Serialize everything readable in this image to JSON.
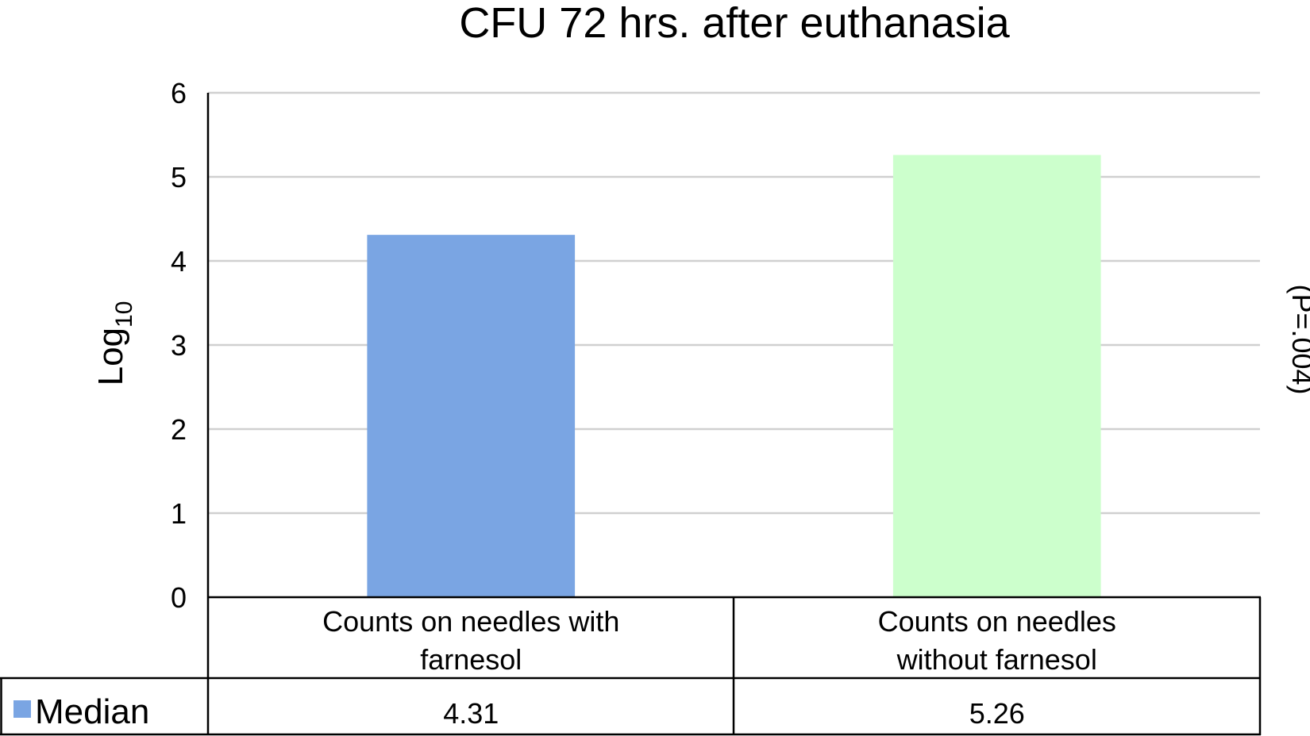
{
  "chart_data": {
    "type": "bar",
    "title": "CFU 72 hrs. after euthanasia",
    "ylabel": {
      "main": "Log",
      "sub": "10"
    },
    "ylim": [
      0,
      6
    ],
    "yticks": [
      "0",
      "1",
      "2",
      "3",
      "4",
      "5",
      "6"
    ],
    "grid": true,
    "categories": [
      {
        "lines": [
          "Counts on needles with",
          "farnesol"
        ]
      },
      {
        "lines": [
          "Counts on needles",
          "without farnesol"
        ]
      }
    ],
    "series": [
      {
        "name": "Median",
        "values": [
          4.31,
          5.26
        ],
        "value_labels": [
          "4.31",
          "5.26"
        ],
        "colors": [
          "#7aa5e3",
          "#ccffcc"
        ],
        "legend_color": "#7aa5e3"
      }
    ],
    "annotation": "(P=.004)",
    "legend_placement": "data-table-row"
  }
}
